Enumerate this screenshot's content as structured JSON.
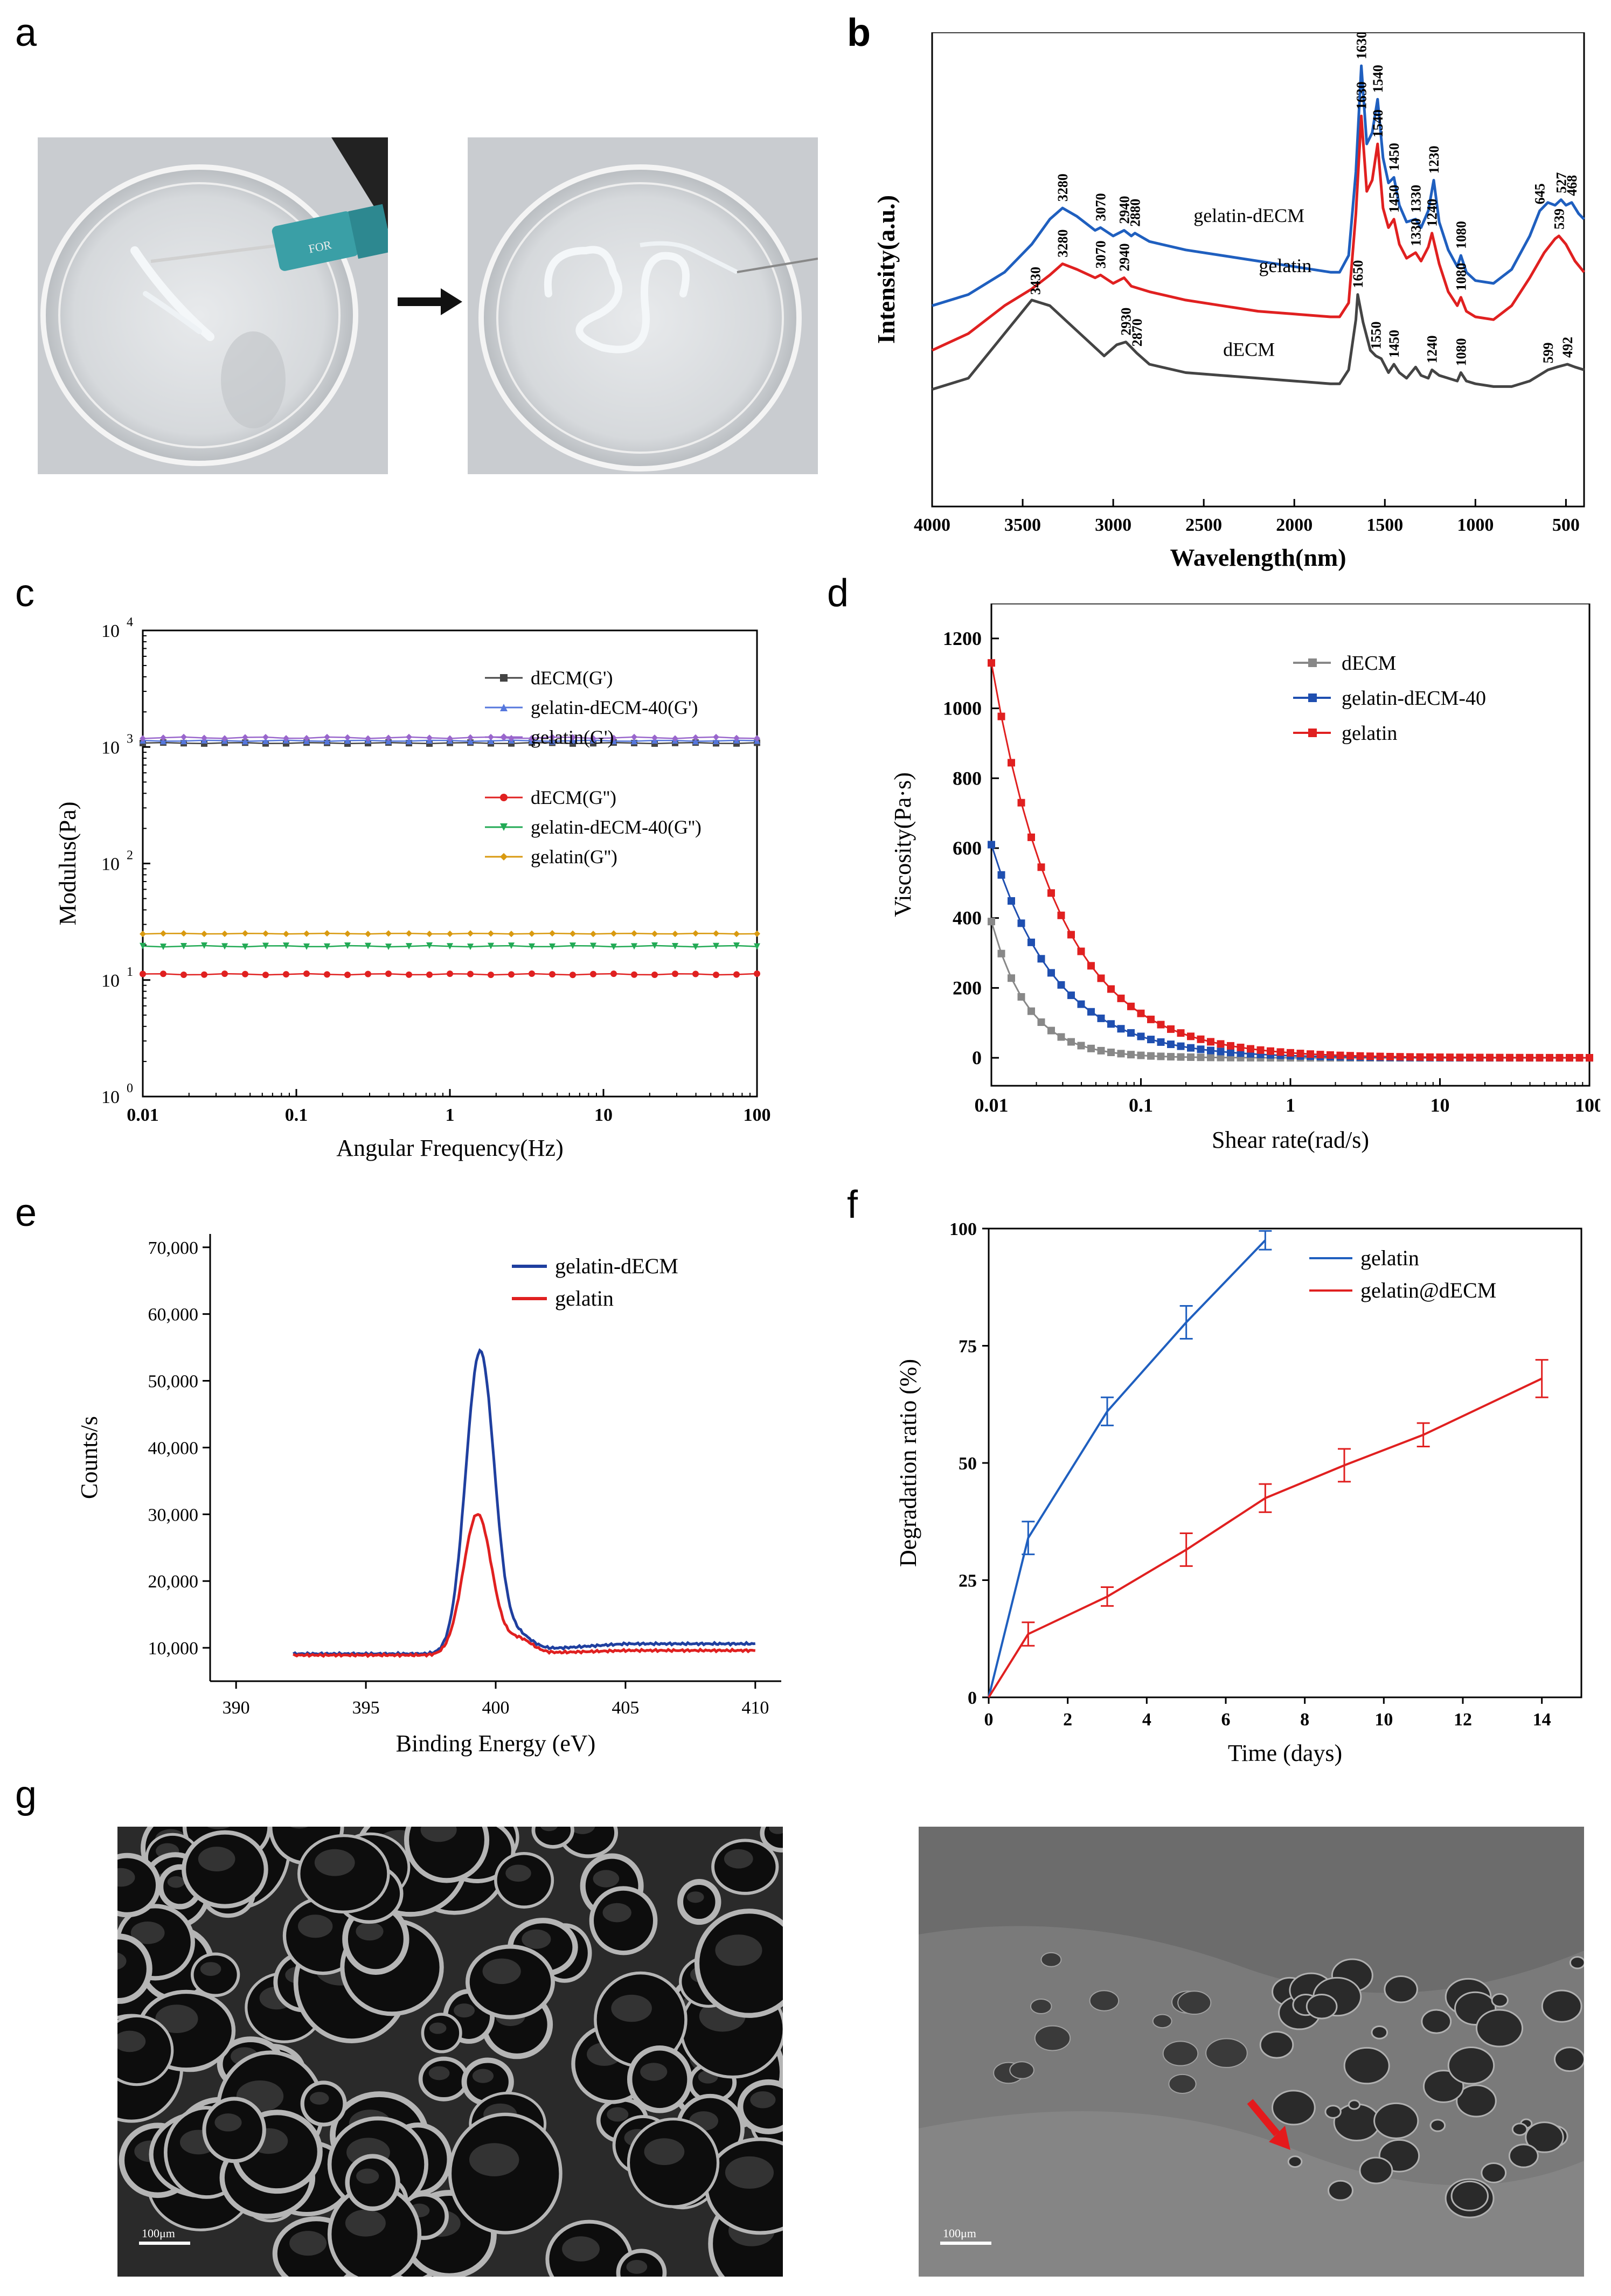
{
  "colors": {
    "blue": "#1f5fbf",
    "red": "#e02020",
    "grey": "#444444",
    "dark_blue": "#1f3f9f",
    "green": "#22aa55",
    "orange": "#d99a10",
    "purple": "#9966cc",
    "light_grey": "#888888"
  },
  "panels": {
    "a": "a",
    "b": "b",
    "c": "c",
    "d": "d",
    "e": "e",
    "f": "f",
    "g": "g"
  },
  "photo_a": {
    "left_label": "FOR",
    "right_label": ""
  },
  "sem": {
    "left_scale": "100μm",
    "right_scale": "100μm"
  },
  "chart_data": [
    {
      "id": "b",
      "type": "line",
      "title": "",
      "xlabel": "Wavelength(nm)",
      "ylabel": "Intensity(a.u.)",
      "xlim": [
        4000,
        400
      ],
      "xticks": [
        "4000",
        "3500",
        "3000",
        "2500",
        "2000",
        "1500",
        "1000",
        "500"
      ],
      "xtick_values": [
        4000,
        3500,
        3000,
        2500,
        2000,
        1500,
        1000,
        500
      ],
      "series": [
        {
          "name": "gelatin-dECM",
          "label": "gelatin-dECM",
          "color": "#1f5fbf",
          "x": [
            4000,
            3800,
            3600,
            3450,
            3350,
            3280,
            3200,
            3100,
            3070,
            3000,
            2940,
            2900,
            2880,
            2800,
            2600,
            2400,
            2200,
            2000,
            1800,
            1750,
            1700,
            1660,
            1630,
            1600,
            1570,
            1540,
            1510,
            1480,
            1450,
            1420,
            1380,
            1330,
            1300,
            1260,
            1230,
            1200,
            1150,
            1100,
            1080,
            1050,
            1000,
            900,
            800,
            700,
            645,
            600,
            560,
            527,
            500,
            468,
            430,
            400
          ],
          "y": [
            1.2,
            1.6,
            2.4,
            3.4,
            4.3,
            4.7,
            4.4,
            3.9,
            4.0,
            3.7,
            3.9,
            3.7,
            3.8,
            3.5,
            3.2,
            3.0,
            2.8,
            2.6,
            2.4,
            2.4,
            3.0,
            6.0,
            9.8,
            7.0,
            7.4,
            8.6,
            6.5,
            5.6,
            5.8,
            4.8,
            4.2,
            4.3,
            4.0,
            4.6,
            5.7,
            4.2,
            3.2,
            2.6,
            3.0,
            2.4,
            2.1,
            2.0,
            2.5,
            3.7,
            4.6,
            4.9,
            4.8,
            5.0,
            4.8,
            4.9,
            4.5,
            4.3
          ]
        },
        {
          "name": "gelatin",
          "label": "gelatin",
          "color": "#e02020",
          "x": [
            4000,
            3800,
            3600,
            3450,
            3350,
            3280,
            3200,
            3100,
            3070,
            3000,
            2940,
            2900,
            2800,
            2600,
            2400,
            2200,
            2000,
            1800,
            1750,
            1700,
            1660,
            1630,
            1600,
            1570,
            1540,
            1510,
            1480,
            1450,
            1420,
            1380,
            1330,
            1300,
            1260,
            1240,
            1200,
            1150,
            1100,
            1080,
            1050,
            1000,
            900,
            800,
            700,
            620,
            560,
            539,
            500,
            450,
            400
          ],
          "y": [
            -0.4,
            0.2,
            1.2,
            1.8,
            2.3,
            2.7,
            2.5,
            2.2,
            2.3,
            2.0,
            2.2,
            1.9,
            1.7,
            1.4,
            1.2,
            1.0,
            0.9,
            0.8,
            0.8,
            1.3,
            4.5,
            8.0,
            5.3,
            5.7,
            7.0,
            4.7,
            4.0,
            4.3,
            3.4,
            2.9,
            3.1,
            2.8,
            3.3,
            3.8,
            2.7,
            1.7,
            1.2,
            1.5,
            1.0,
            0.8,
            0.7,
            1.2,
            2.2,
            3.1,
            3.6,
            3.7,
            3.4,
            2.8,
            2.4
          ]
        },
        {
          "name": "dECM",
          "label": "dECM",
          "color": "#444444",
          "x": [
            4000,
            3800,
            3600,
            3450,
            3350,
            3250,
            3150,
            3050,
            2980,
            2930,
            2900,
            2870,
            2800,
            2600,
            2400,
            2200,
            2000,
            1800,
            1750,
            1700,
            1660,
            1650,
            1620,
            1580,
            1550,
            1520,
            1480,
            1450,
            1420,
            1380,
            1330,
            1300,
            1260,
            1240,
            1200,
            1150,
            1100,
            1080,
            1050,
            1000,
            900,
            800,
            700,
            599,
            550,
            492,
            450,
            400
          ],
          "y": [
            -1.8,
            -1.4,
            0.2,
            1.4,
            1.2,
            0.6,
            0.0,
            -0.6,
            -0.2,
            -0.1,
            -0.3,
            -0.5,
            -0.9,
            -1.2,
            -1.3,
            -1.4,
            -1.5,
            -1.6,
            -1.6,
            -1.1,
            0.7,
            1.6,
            0.6,
            -0.4,
            -0.6,
            -0.7,
            -1.2,
            -0.9,
            -1.2,
            -1.4,
            -1.0,
            -1.3,
            -1.4,
            -1.1,
            -1.3,
            -1.4,
            -1.5,
            -1.2,
            -1.5,
            -1.6,
            -1.7,
            -1.7,
            -1.5,
            -1.1,
            -1.0,
            -0.9,
            -1.0,
            -1.1
          ]
        }
      ],
      "annotations": [
        {
          "series": "gelatin-dECM",
          "x": 3280,
          "text": "3280"
        },
        {
          "series": "gelatin-dECM",
          "x": 3070,
          "text": "3070"
        },
        {
          "series": "gelatin-dECM",
          "x": 2940,
          "text": "2940"
        },
        {
          "series": "gelatin-dECM",
          "x": 2880,
          "text": "2880"
        },
        {
          "series": "gelatin-dECM",
          "x": 1630,
          "text": "1630"
        },
        {
          "series": "gelatin-dECM",
          "x": 1540,
          "text": "1540"
        },
        {
          "series": "gelatin-dECM",
          "x": 1450,
          "text": "1450"
        },
        {
          "series": "gelatin-dECM",
          "x": 1330,
          "text": "1330"
        },
        {
          "series": "gelatin-dECM",
          "x": 1230,
          "text": "1230"
        },
        {
          "series": "gelatin-dECM",
          "x": 1080,
          "text": "1080"
        },
        {
          "series": "gelatin-dECM",
          "x": 645,
          "text": "645"
        },
        {
          "series": "gelatin-dECM",
          "x": 527,
          "text": "527"
        },
        {
          "series": "gelatin-dECM",
          "x": 468,
          "text": "468"
        },
        {
          "series": "gelatin",
          "x": 3280,
          "text": "3280"
        },
        {
          "series": "gelatin",
          "x": 3070,
          "text": "3070"
        },
        {
          "series": "gelatin",
          "x": 2940,
          "text": "2940"
        },
        {
          "series": "gelatin",
          "x": 1630,
          "text": "1630"
        },
        {
          "series": "gelatin",
          "x": 1540,
          "text": "1540"
        },
        {
          "series": "gelatin",
          "x": 1450,
          "text": "1450"
        },
        {
          "series": "gelatin",
          "x": 1330,
          "text": "1330"
        },
        {
          "series": "gelatin",
          "x": 1240,
          "text": "1240"
        },
        {
          "series": "gelatin",
          "x": 1080,
          "text": "1080"
        },
        {
          "series": "gelatin",
          "x": 539,
          "text": "539"
        },
        {
          "series": "dECM",
          "x": 3430,
          "text": "3430"
        },
        {
          "series": "dECM",
          "x": 2930,
          "text": "2930"
        },
        {
          "series": "dECM",
          "x": 2870,
          "text": "2870"
        },
        {
          "series": "dECM",
          "x": 1650,
          "text": "1650"
        },
        {
          "series": "dECM",
          "x": 1550,
          "text": "1550"
        },
        {
          "series": "dECM",
          "x": 1450,
          "text": "1450"
        },
        {
          "series": "dECM",
          "x": 1240,
          "text": "1240"
        },
        {
          "series": "dECM",
          "x": 1080,
          "text": "1080"
        },
        {
          "series": "dECM",
          "x": 599,
          "text": "599"
        },
        {
          "series": "dECM",
          "x": 492,
          "text": "492"
        }
      ],
      "ylim": [
        -6,
        11
      ]
    },
    {
      "id": "c",
      "type": "line",
      "scale": "log-log",
      "xlabel": "Angular Frequency(Hz)",
      "ylabel": "Modulus(Pa)",
      "xlim": [
        0.01,
        100
      ],
      "ylim": [
        1,
        10000
      ],
      "xticks": [
        "0.01",
        "0.1",
        "1",
        "10",
        "100"
      ],
      "xtick_values": [
        0.01,
        0.1,
        1,
        10,
        100
      ],
      "ytick_values": [
        1,
        10,
        100,
        1000,
        10000
      ],
      "yticks_base": [
        "10",
        "10",
        "10",
        "10",
        "10"
      ],
      "yticks_exp": [
        "0",
        "1",
        "2",
        "3",
        "4"
      ],
      "legend_position": "top-right",
      "series": [
        {
          "name": "dECM(G')",
          "color": "#444444",
          "marker": "square",
          "value": 1080,
          "jitter": 0.01
        },
        {
          "name": "gelatin-dECM-40(G')",
          "color": "#5577dd",
          "marker": "triangle",
          "value": 1130,
          "jitter": 0.01
        },
        {
          "name": "gelatin(G')",
          "color": "#9966cc",
          "marker": "diamond",
          "value": 1200,
          "jitter": 0.015
        },
        {
          "name": "dECM(G'')",
          "color": "#e02020",
          "marker": "circle",
          "value": 11.2,
          "jitter": 0.012
        },
        {
          "name": "gelatin-dECM-40(G'')",
          "color": "#22aa55",
          "marker": "tri-down",
          "value": 19.5,
          "jitter": 0.012
        },
        {
          "name": "gelatin(G'')",
          "color": "#d99a10",
          "marker": "diamond",
          "value": 25,
          "jitter": 0.006
        }
      ]
    },
    {
      "id": "d",
      "type": "line",
      "scale": "log-x",
      "xlabel": "Shear rate(rad/s)",
      "ylabel": "Viscosity(Pa·s)",
      "xlim": [
        0.01,
        100
      ],
      "ylim": [
        -80,
        1300
      ],
      "xticks": [
        "0.01",
        "0.1",
        "1",
        "10",
        "100"
      ],
      "xtick_values": [
        0.01,
        0.1,
        1,
        10,
        100
      ],
      "yticks": [
        "0",
        "200",
        "400",
        "600",
        "800",
        "1000",
        "1200"
      ],
      "ytick_values": [
        0,
        200,
        400,
        600,
        800,
        1000,
        1200
      ],
      "legend_position": "top-right",
      "series": [
        {
          "name": "dECM",
          "color": "#888888",
          "y0": 390,
          "decay": 1.75
        },
        {
          "name": "gelatin-dECM-40",
          "color": "#1f4fb0",
          "y0": 610,
          "decay": 1.0
        },
        {
          "name": "gelatin",
          "color": "#e02020",
          "y0": 1130,
          "decay": 0.95
        }
      ]
    },
    {
      "id": "e",
      "type": "line",
      "xlabel": "Binding Energy (eV)",
      "ylabel": "Counts/s",
      "xlim": [
        389,
        411
      ],
      "ylim": [
        5000,
        72000
      ],
      "xticks": [
        "390",
        "395",
        "400",
        "405",
        "410"
      ],
      "xtick_values": [
        390,
        395,
        400,
        405,
        410
      ],
      "yticks": [
        "10,000",
        "20,000",
        "30,000",
        "40,000",
        "50,000",
        "60,000",
        "70,000"
      ],
      "ytick_values": [
        10000,
        20000,
        30000,
        40000,
        50000,
        60000,
        70000
      ],
      "legend_position": "top-right",
      "series": [
        {
          "name": "gelatin-dECM",
          "color": "#1f3f9f",
          "peak_x": 399.4,
          "peak_height": 45300,
          "base_left": 9100,
          "base_right": 10600,
          "sigma": 0.55
        },
        {
          "name": "gelatin",
          "color": "#e02020",
          "peak_x": 399.3,
          "peak_height": 21100,
          "base_left": 8900,
          "base_right": 9600,
          "sigma": 0.55
        }
      ],
      "x_range": [
        392.2,
        410
      ]
    },
    {
      "id": "f",
      "type": "line",
      "xlabel": "Time (days)",
      "ylabel": "Degradation ratio (%)",
      "xlim": [
        0,
        15
      ],
      "ylim": [
        0,
        100
      ],
      "xticks": [
        "0",
        "2",
        "4",
        "6",
        "8",
        "10",
        "12",
        "14"
      ],
      "xtick_values": [
        0,
        2,
        4,
        6,
        8,
        10,
        12,
        14
      ],
      "yticks": [
        "0",
        "25",
        "50",
        "75",
        "100"
      ],
      "ytick_values": [
        0,
        25,
        50,
        75,
        100
      ],
      "legend_position": "top-right",
      "series": [
        {
          "name": "gelatin",
          "color": "#1f5fbf",
          "x": [
            0,
            1,
            3,
            5,
            7
          ],
          "y": [
            0,
            34,
            61,
            80,
            97.5
          ],
          "err": [
            0,
            3.5,
            3,
            3.5,
            2
          ]
        },
        {
          "name": "gelatin@dECM",
          "color": "#e02020",
          "x": [
            0,
            1,
            3,
            5,
            7,
            9,
            11,
            14
          ],
          "y": [
            0,
            13.5,
            21.5,
            31.5,
            42.5,
            49.5,
            56,
            68
          ],
          "err": [
            0,
            2.5,
            2,
            3.5,
            3,
            3.5,
            2.5,
            4
          ]
        }
      ]
    }
  ]
}
